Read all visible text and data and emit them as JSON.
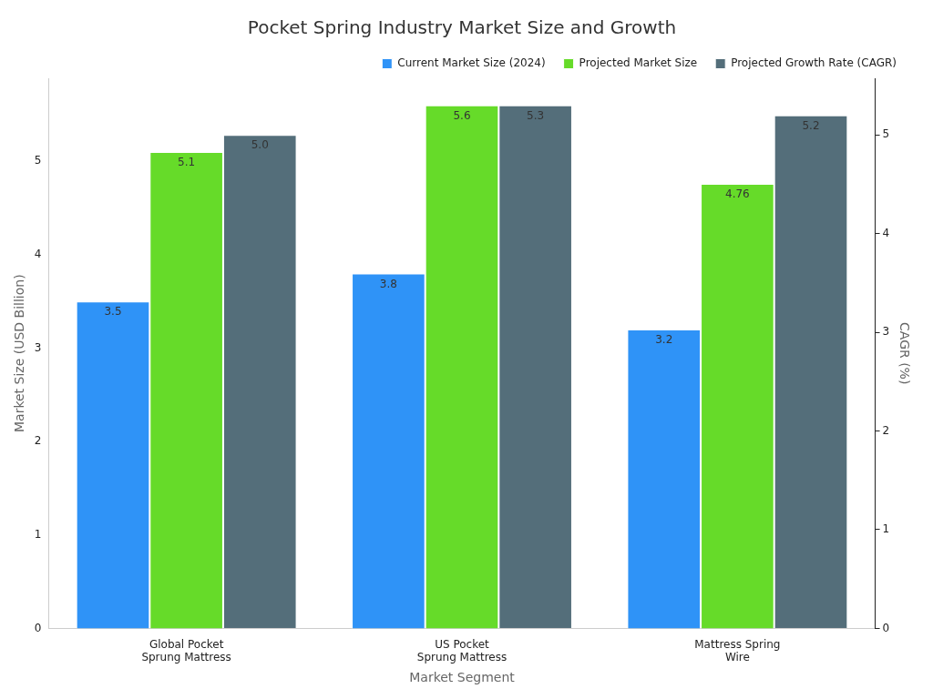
{
  "chart_data": {
    "type": "bar",
    "title": "Pocket Spring Industry Market Size and Growth",
    "xlabel": "Market Segment",
    "ylabel": "Market Size (USD Billion)",
    "y2label": "CAGR (%)",
    "categories": [
      "Global Pocket Sprung Mattress",
      "US Pocket Sprung Mattress",
      "Mattress Spring Wire"
    ],
    "series": [
      {
        "name": "Current Market Size (2024)",
        "color": "#2f93f7",
        "values": [
          3.5,
          3.8,
          3.2
        ],
        "value_labels": [
          "3.5",
          "3.8",
          "3.2"
        ]
      },
      {
        "name": "Projected Market Size",
        "color": "#66db29",
        "values": [
          5.1,
          5.6,
          4.76
        ],
        "value_labels": [
          "5.1",
          "5.6",
          "4.76"
        ]
      },
      {
        "name": "Projected Growth Rate (CAGR)",
        "color": "#546e7a",
        "values": [
          5.0,
          5.3,
          5.2
        ],
        "value_labels": [
          "5.0",
          "5.3",
          "5.2"
        ],
        "axis": "y2"
      }
    ],
    "ylim": [
      0,
      5.89
    ],
    "yticks": [
      0,
      1,
      2,
      3,
      4,
      5
    ],
    "y2lim": [
      0,
      5.575
    ],
    "y2ticks": [
      0,
      1,
      2,
      3,
      4,
      5
    ],
    "grid": false,
    "legend": "top right"
  }
}
